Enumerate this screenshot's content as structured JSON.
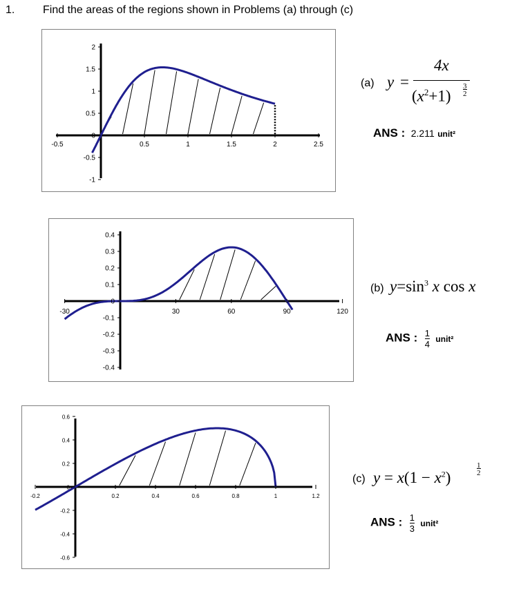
{
  "header": {
    "number": "1.",
    "text": "Find the areas of the regions shown in Problems (a) through (c)"
  },
  "colors": {
    "curve": "#1f1f8f",
    "axis": "#000000",
    "hatch": "#000000"
  },
  "charts": [
    {
      "id": "a",
      "x_ticks": [
        "-0.5",
        "0.5",
        "1",
        "1.5",
        "2",
        "2.5"
      ],
      "y_ticks": [
        "2",
        "1.5",
        "1",
        "0.5",
        "0",
        "-0.5",
        "-1"
      ],
      "label": "(a)",
      "answer_label": "ANS :",
      "answer_value": "2.211",
      "unit": "unit²"
    },
    {
      "id": "b",
      "x_ticks": [
        "-30",
        "30",
        "60",
        "90",
        "120"
      ],
      "y_ticks": [
        "0.4",
        "0.3",
        "0.2",
        "0.1",
        "0",
        "-0.1",
        "-0.2",
        "-0.3",
        "-0.4"
      ],
      "label": "(b)",
      "answer_label": "ANS :",
      "answer_num": "1",
      "answer_den": "4",
      "unit": "unit²"
    },
    {
      "id": "c",
      "x_ticks": [
        "-0.2",
        "0.2",
        "0.4",
        "0.6",
        "0.8",
        "1",
        "1.2"
      ],
      "y_ticks": [
        "0.6",
        "0.4",
        "0.2",
        "0",
        "-0.2",
        "-0.4",
        "-0.6"
      ],
      "label": "(c)",
      "answer_label": "ANS :",
      "answer_num": "1",
      "answer_den": "3",
      "unit": "unit²"
    }
  ],
  "chart_data": [
    {
      "type": "line",
      "function": "y = 4x/(x^2+1)^(3/2)",
      "x": [
        -0.1,
        0,
        0.25,
        0.5,
        0.7,
        1,
        1.25,
        1.5,
        1.75,
        2
      ],
      "y": [
        -0.39,
        0,
        0.87,
        1.43,
        1.5,
        1.41,
        1.22,
        1.02,
        0.86,
        0.72
      ],
      "xlim": [
        -0.5,
        2.5
      ],
      "ylim": [
        -1,
        2
      ],
      "shaded_region": [
        0,
        2
      ]
    },
    {
      "type": "line",
      "function": "y = sin^3 x cos x",
      "x": [
        -30,
        -15,
        0,
        15,
        30,
        45,
        60,
        75,
        90,
        93
      ],
      "y": [
        -0.108,
        -0.017,
        0,
        0.017,
        0.108,
        0.25,
        0.325,
        0.233,
        0,
        -0.05
      ],
      "xlim": [
        -30,
        120
      ],
      "ylim": [
        -0.4,
        0.4
      ],
      "shaded_region": [
        0,
        90
      ]
    },
    {
      "type": "line",
      "function": "y = x(1-x^2)^(1/2)",
      "x": [
        -0.2,
        0,
        0.2,
        0.4,
        0.6,
        0.7,
        0.8,
        0.9,
        1
      ],
      "y": [
        -0.2,
        0,
        0.196,
        0.367,
        0.48,
        0.5,
        0.48,
        0.392,
        0
      ],
      "xlim": [
        -0.2,
        1.2
      ],
      "ylim": [
        -0.6,
        0.6
      ],
      "shaded_region": [
        0,
        1
      ]
    }
  ]
}
